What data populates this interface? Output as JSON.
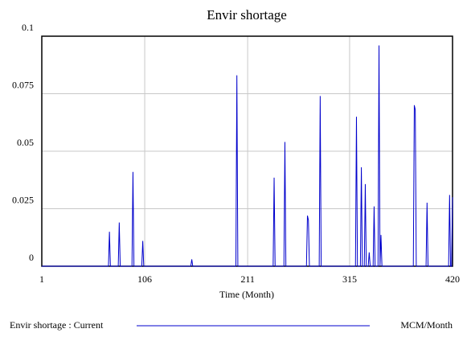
{
  "chart_data": {
    "type": "line",
    "title": "Envir shortage",
    "x_label": "Time (Month)",
    "x": [
      1,
      69,
      70,
      71,
      79,
      80,
      81,
      93,
      94,
      95,
      103,
      104,
      105,
      153,
      154,
      155,
      199,
      200,
      201,
      237,
      238,
      239,
      248,
      249,
      250,
      271,
      272,
      273,
      274,
      284,
      285,
      286,
      321,
      322,
      323,
      326,
      327,
      328,
      330,
      331,
      332,
      334,
      335,
      336,
      339,
      340,
      341,
      344,
      345,
      346,
      347,
      348,
      380,
      381,
      382,
      383,
      393,
      394,
      395,
      416,
      417,
      418,
      419,
      420
    ],
    "series": [
      {
        "name": "Envir shortage : Current",
        "unit": "MCM/Month",
        "color": "#0000cc",
        "values": [
          0,
          0,
          0.015,
          0,
          0,
          0.019,
          0,
          0,
          0.041,
          0,
          0,
          0.011,
          0,
          0,
          0.003,
          0,
          0,
          0.083,
          0,
          0,
          0.0385,
          0,
          0,
          0.054,
          0,
          0,
          0.022,
          0.02,
          0,
          0,
          0.074,
          0,
          0,
          0.065,
          0,
          0,
          0.043,
          0,
          0,
          0.0357,
          0,
          0,
          0.006,
          0,
          0,
          0.026,
          0,
          0,
          0.096,
          0,
          0.0136,
          0,
          0,
          0.07,
          0.068,
          0,
          0,
          0.0276,
          0,
          0,
          0.031,
          0,
          0,
          0.03
        ]
      }
    ],
    "xlim": [
      1,
      420
    ],
    "xticks": [
      1,
      106,
      211,
      315,
      420
    ],
    "ylim": [
      0,
      0.1
    ],
    "yticks": [
      0,
      0.025,
      0.05,
      0.075,
      0.1
    ],
    "grid": true
  }
}
